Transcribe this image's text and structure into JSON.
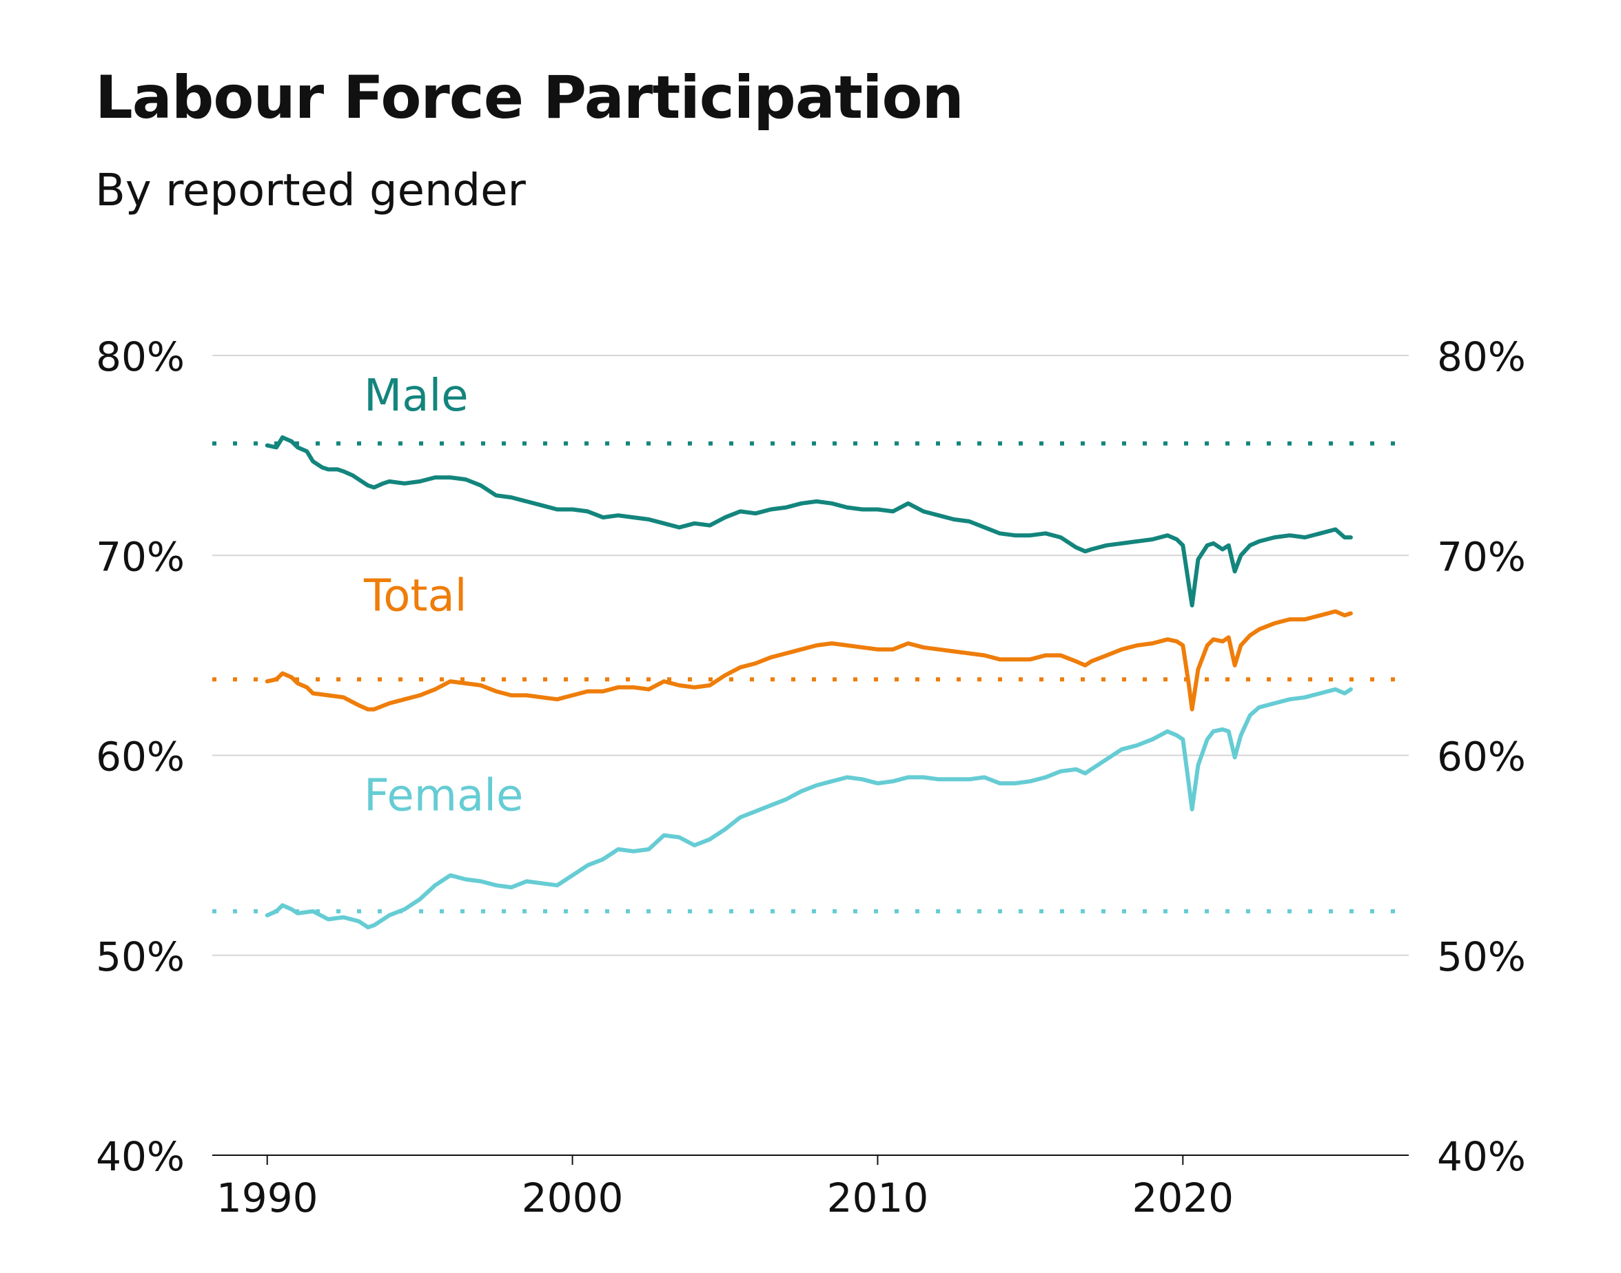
{
  "title": "Labour Force Participation",
  "subtitle": "By reported gender",
  "chart_data": {
    "type": "line",
    "title": "Labour Force Participation",
    "subtitle": "By reported gender",
    "xlabel": "",
    "ylabel": "",
    "x_ticks": [
      "1990",
      "2000",
      "2010",
      "2020"
    ],
    "x_tick_values": [
      1990,
      2000,
      2010,
      2020
    ],
    "y_ticks": [
      "40%",
      "50%",
      "60%",
      "70%",
      "80%"
    ],
    "y_tick_values": [
      40,
      50,
      60,
      70,
      80
    ],
    "xlim": [
      1988.2,
      2027.4
    ],
    "ylim": [
      40,
      80
    ],
    "grid": "horizontal",
    "legend": "direct labels on left",
    "series": [
      {
        "name": "Male",
        "color": "#13857d",
        "reference_line": 75.6,
        "points": [
          [
            1990.0,
            75.5
          ],
          [
            1990.3,
            75.4
          ],
          [
            1990.5,
            75.9
          ],
          [
            1990.8,
            75.7
          ],
          [
            1991.0,
            75.4
          ],
          [
            1991.3,
            75.2
          ],
          [
            1991.5,
            74.7
          ],
          [
            1991.8,
            74.4
          ],
          [
            1992.0,
            74.3
          ],
          [
            1992.3,
            74.3
          ],
          [
            1992.5,
            74.2
          ],
          [
            1992.8,
            74.0
          ],
          [
            1993.0,
            73.8
          ],
          [
            1993.3,
            73.5
          ],
          [
            1993.5,
            73.4
          ],
          [
            1993.8,
            73.6
          ],
          [
            1994.0,
            73.7
          ],
          [
            1994.5,
            73.6
          ],
          [
            1995.0,
            73.7
          ],
          [
            1995.5,
            73.9
          ],
          [
            1996.0,
            73.9
          ],
          [
            1996.5,
            73.8
          ],
          [
            1997.0,
            73.5
          ],
          [
            1997.5,
            73.0
          ],
          [
            1998.0,
            72.9
          ],
          [
            1998.5,
            72.7
          ],
          [
            1999.0,
            72.5
          ],
          [
            1999.5,
            72.3
          ],
          [
            2000.0,
            72.3
          ],
          [
            2000.5,
            72.2
          ],
          [
            2001.0,
            71.9
          ],
          [
            2001.5,
            72.0
          ],
          [
            2002.0,
            71.9
          ],
          [
            2002.5,
            71.8
          ],
          [
            2003.0,
            71.6
          ],
          [
            2003.5,
            71.4
          ],
          [
            2004.0,
            71.6
          ],
          [
            2004.5,
            71.5
          ],
          [
            2005.0,
            71.9
          ],
          [
            2005.5,
            72.2
          ],
          [
            2006.0,
            72.1
          ],
          [
            2006.5,
            72.3
          ],
          [
            2007.0,
            72.4
          ],
          [
            2007.5,
            72.6
          ],
          [
            2008.0,
            72.7
          ],
          [
            2008.5,
            72.6
          ],
          [
            2009.0,
            72.4
          ],
          [
            2009.5,
            72.3
          ],
          [
            2010.0,
            72.3
          ],
          [
            2010.5,
            72.2
          ],
          [
            2011.0,
            72.6
          ],
          [
            2011.5,
            72.2
          ],
          [
            2012.0,
            72.0
          ],
          [
            2012.5,
            71.8
          ],
          [
            2013.0,
            71.7
          ],
          [
            2013.5,
            71.4
          ],
          [
            2014.0,
            71.1
          ],
          [
            2014.5,
            71.0
          ],
          [
            2015.0,
            71.0
          ],
          [
            2015.5,
            71.1
          ],
          [
            2016.0,
            70.9
          ],
          [
            2016.5,
            70.4
          ],
          [
            2016.8,
            70.2
          ],
          [
            2017.0,
            70.3
          ],
          [
            2017.5,
            70.5
          ],
          [
            2018.0,
            70.6
          ],
          [
            2018.5,
            70.7
          ],
          [
            2019.0,
            70.8
          ],
          [
            2019.5,
            71.0
          ],
          [
            2019.8,
            70.8
          ],
          [
            2020.0,
            70.5
          ],
          [
            2020.2,
            68.5
          ],
          [
            2020.3,
            67.5
          ],
          [
            2020.5,
            69.8
          ],
          [
            2020.8,
            70.5
          ],
          [
            2021.0,
            70.6
          ],
          [
            2021.3,
            70.3
          ],
          [
            2021.5,
            70.5
          ],
          [
            2021.7,
            69.2
          ],
          [
            2021.9,
            70.0
          ],
          [
            2022.2,
            70.5
          ],
          [
            2022.5,
            70.7
          ],
          [
            2023.0,
            70.9
          ],
          [
            2023.5,
            71.0
          ],
          [
            2024.0,
            70.9
          ],
          [
            2024.5,
            71.1
          ],
          [
            2025.0,
            71.3
          ],
          [
            2025.3,
            70.9
          ],
          [
            2025.5,
            70.9
          ]
        ]
      },
      {
        "name": "Total",
        "color": "#ee7d0a",
        "reference_line": 63.8,
        "points": [
          [
            1990.0,
            63.7
          ],
          [
            1990.3,
            63.8
          ],
          [
            1990.5,
            64.1
          ],
          [
            1990.8,
            63.9
          ],
          [
            1991.0,
            63.6
          ],
          [
            1991.3,
            63.4
          ],
          [
            1991.5,
            63.1
          ],
          [
            1992.0,
            63.0
          ],
          [
            1992.5,
            62.9
          ],
          [
            1993.0,
            62.5
          ],
          [
            1993.3,
            62.3
          ],
          [
            1993.5,
            62.3
          ],
          [
            1994.0,
            62.6
          ],
          [
            1994.5,
            62.8
          ],
          [
            1995.0,
            63.0
          ],
          [
            1995.5,
            63.3
          ],
          [
            1996.0,
            63.7
          ],
          [
            1996.5,
            63.6
          ],
          [
            1997.0,
            63.5
          ],
          [
            1997.5,
            63.2
          ],
          [
            1998.0,
            63.0
          ],
          [
            1998.5,
            63.0
          ],
          [
            1999.0,
            62.9
          ],
          [
            1999.5,
            62.8
          ],
          [
            2000.0,
            63.0
          ],
          [
            2000.5,
            63.2
          ],
          [
            2001.0,
            63.2
          ],
          [
            2001.5,
            63.4
          ],
          [
            2002.0,
            63.4
          ],
          [
            2002.5,
            63.3
          ],
          [
            2003.0,
            63.7
          ],
          [
            2003.5,
            63.5
          ],
          [
            2004.0,
            63.4
          ],
          [
            2004.5,
            63.5
          ],
          [
            2005.0,
            64.0
          ],
          [
            2005.5,
            64.4
          ],
          [
            2006.0,
            64.6
          ],
          [
            2006.5,
            64.9
          ],
          [
            2007.0,
            65.1
          ],
          [
            2007.5,
            65.3
          ],
          [
            2008.0,
            65.5
          ],
          [
            2008.5,
            65.6
          ],
          [
            2009.0,
            65.5
          ],
          [
            2009.5,
            65.4
          ],
          [
            2010.0,
            65.3
          ],
          [
            2010.5,
            65.3
          ],
          [
            2011.0,
            65.6
          ],
          [
            2011.5,
            65.4
          ],
          [
            2012.0,
            65.3
          ],
          [
            2012.5,
            65.2
          ],
          [
            2013.0,
            65.1
          ],
          [
            2013.5,
            65.0
          ],
          [
            2014.0,
            64.8
          ],
          [
            2014.5,
            64.8
          ],
          [
            2015.0,
            64.8
          ],
          [
            2015.5,
            65.0
          ],
          [
            2016.0,
            65.0
          ],
          [
            2016.5,
            64.7
          ],
          [
            2016.8,
            64.5
          ],
          [
            2017.0,
            64.7
          ],
          [
            2017.5,
            65.0
          ],
          [
            2018.0,
            65.3
          ],
          [
            2018.5,
            65.5
          ],
          [
            2019.0,
            65.6
          ],
          [
            2019.5,
            65.8
          ],
          [
            2019.8,
            65.7
          ],
          [
            2020.0,
            65.5
          ],
          [
            2020.2,
            63.5
          ],
          [
            2020.3,
            62.3
          ],
          [
            2020.5,
            64.3
          ],
          [
            2020.8,
            65.5
          ],
          [
            2021.0,
            65.8
          ],
          [
            2021.3,
            65.7
          ],
          [
            2021.5,
            65.9
          ],
          [
            2021.7,
            64.5
          ],
          [
            2021.9,
            65.5
          ],
          [
            2022.2,
            66.0
          ],
          [
            2022.5,
            66.3
          ],
          [
            2023.0,
            66.6
          ],
          [
            2023.5,
            66.8
          ],
          [
            2024.0,
            66.8
          ],
          [
            2024.5,
            67.0
          ],
          [
            2025.0,
            67.2
          ],
          [
            2025.3,
            67.0
          ],
          [
            2025.5,
            67.1
          ]
        ]
      },
      {
        "name": "Female",
        "color": "#66ccd4",
        "reference_line": 52.2,
        "points": [
          [
            1990.0,
            52.0
          ],
          [
            1990.3,
            52.2
          ],
          [
            1990.5,
            52.5
          ],
          [
            1990.8,
            52.3
          ],
          [
            1991.0,
            52.1
          ],
          [
            1991.5,
            52.2
          ],
          [
            1992.0,
            51.8
          ],
          [
            1992.5,
            51.9
          ],
          [
            1993.0,
            51.7
          ],
          [
            1993.3,
            51.4
          ],
          [
            1993.5,
            51.5
          ],
          [
            1994.0,
            52.0
          ],
          [
            1994.5,
            52.3
          ],
          [
            1995.0,
            52.8
          ],
          [
            1995.5,
            53.5
          ],
          [
            1996.0,
            54.0
          ],
          [
            1996.5,
            53.8
          ],
          [
            1997.0,
            53.7
          ],
          [
            1997.5,
            53.5
          ],
          [
            1998.0,
            53.4
          ],
          [
            1998.5,
            53.7
          ],
          [
            1999.0,
            53.6
          ],
          [
            1999.5,
            53.5
          ],
          [
            2000.0,
            54.0
          ],
          [
            2000.5,
            54.5
          ],
          [
            2001.0,
            54.8
          ],
          [
            2001.5,
            55.3
          ],
          [
            2002.0,
            55.2
          ],
          [
            2002.5,
            55.3
          ],
          [
            2003.0,
            56.0
          ],
          [
            2003.5,
            55.9
          ],
          [
            2004.0,
            55.5
          ],
          [
            2004.5,
            55.8
          ],
          [
            2005.0,
            56.3
          ],
          [
            2005.5,
            56.9
          ],
          [
            2006.0,
            57.2
          ],
          [
            2006.5,
            57.5
          ],
          [
            2007.0,
            57.8
          ],
          [
            2007.5,
            58.2
          ],
          [
            2008.0,
            58.5
          ],
          [
            2008.5,
            58.7
          ],
          [
            2009.0,
            58.9
          ],
          [
            2009.5,
            58.8
          ],
          [
            2010.0,
            58.6
          ],
          [
            2010.5,
            58.7
          ],
          [
            2011.0,
            58.9
          ],
          [
            2011.5,
            58.9
          ],
          [
            2012.0,
            58.8
          ],
          [
            2012.5,
            58.8
          ],
          [
            2013.0,
            58.8
          ],
          [
            2013.5,
            58.9
          ],
          [
            2014.0,
            58.6
          ],
          [
            2014.5,
            58.6
          ],
          [
            2015.0,
            58.7
          ],
          [
            2015.5,
            58.9
          ],
          [
            2016.0,
            59.2
          ],
          [
            2016.5,
            59.3
          ],
          [
            2016.8,
            59.1
          ],
          [
            2017.0,
            59.3
          ],
          [
            2017.5,
            59.8
          ],
          [
            2018.0,
            60.3
          ],
          [
            2018.5,
            60.5
          ],
          [
            2019.0,
            60.8
          ],
          [
            2019.5,
            61.2
          ],
          [
            2019.8,
            61.0
          ],
          [
            2020.0,
            60.8
          ],
          [
            2020.2,
            58.5
          ],
          [
            2020.3,
            57.3
          ],
          [
            2020.5,
            59.5
          ],
          [
            2020.8,
            60.8
          ],
          [
            2021.0,
            61.2
          ],
          [
            2021.3,
            61.3
          ],
          [
            2021.5,
            61.2
          ],
          [
            2021.7,
            59.9
          ],
          [
            2021.9,
            61.0
          ],
          [
            2022.2,
            62.0
          ],
          [
            2022.5,
            62.4
          ],
          [
            2023.0,
            62.6
          ],
          [
            2023.5,
            62.8
          ],
          [
            2024.0,
            62.9
          ],
          [
            2024.5,
            63.1
          ],
          [
            2025.0,
            63.3
          ],
          [
            2025.3,
            63.1
          ],
          [
            2025.5,
            63.3
          ]
        ]
      }
    ]
  }
}
